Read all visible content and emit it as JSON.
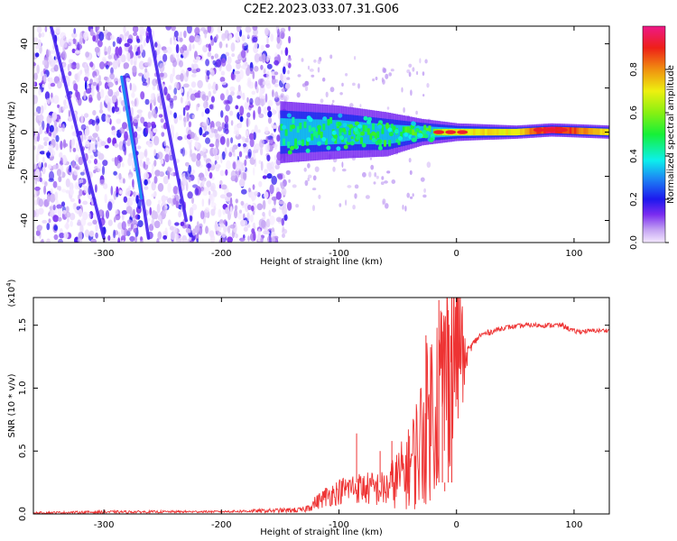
{
  "figure_title": "C2E2.2023.033.07.31.G06",
  "chart_data": [
    {
      "type": "heatmap",
      "title": "C2E2.2023.033.07.31.G06",
      "xlabel": "Height of straight line (km)",
      "ylabel": "Frequency (Hz)",
      "xlim": [
        -360,
        130
      ],
      "ylim": [
        -50,
        48
      ],
      "x_ticks": [
        -300,
        -200,
        -100,
        0,
        100
      ],
      "y_ticks": [
        -40,
        -20,
        0,
        20,
        40
      ],
      "colorbar": {
        "label": "Normalized spectral amplitude",
        "range": [
          0.0,
          1.0
        ],
        "ticks": [
          0.0,
          0.2,
          0.4,
          0.6,
          0.8
        ],
        "tick_labels": [
          "0.0",
          "0.2",
          "0.4",
          "0.6",
          "0.8"
        ]
      },
      "features": {
        "noise_region_x": [
          -360,
          -150
        ],
        "diagonal_streaks": [
          [
            -345,
            48,
            -300,
            -48
          ],
          [
            -262,
            48,
            -230,
            -40
          ],
          [
            -283,
            25,
            -262,
            -48
          ]
        ],
        "bright_diagonal": [
          -285,
          25,
          -268,
          -30
        ],
        "signal_band": [
          [
            -150,
            0,
            14,
            0.45
          ],
          [
            -100,
            0,
            12,
            0.5
          ],
          [
            -60,
            -1,
            10,
            0.5
          ],
          [
            -30,
            0,
            6,
            0.55
          ],
          [
            0,
            0,
            4,
            0.7
          ],
          [
            50,
            0,
            3,
            0.7
          ],
          [
            80,
            1,
            3,
            0.95
          ],
          [
            130,
            0,
            3,
            0.7
          ]
        ]
      },
      "grid": false,
      "legend": "none"
    },
    {
      "type": "line",
      "xlabel": "Height of straight line (km)",
      "ylabel": "SNR (10 * v/v)",
      "scale_label": "(x10",
      "scale_exponent": "4",
      "scale_close": ")",
      "xlim": [
        -360,
        130
      ],
      "ylim": [
        0,
        1.72
      ],
      "x_ticks": [
        -300,
        -200,
        -100,
        0,
        100
      ],
      "y_ticks": [
        0.0,
        0.5,
        1.0,
        1.5
      ],
      "y_tick_labels": [
        "0.0",
        "0.5",
        "1.0",
        "1.5"
      ],
      "series": [
        {
          "color": "#ee3333",
          "envelope": [
            [
              -360,
              0.005,
              0.01
            ],
            [
              -300,
              0.01,
              0.015
            ],
            [
              -200,
              0.015,
              0.01
            ],
            [
              -130,
              0.02,
              0.03
            ],
            [
              -110,
              0.1,
              0.12
            ],
            [
              -90,
              0.15,
              0.16
            ],
            [
              -60,
              0.12,
              0.2
            ],
            [
              -40,
              0.2,
              0.45
            ],
            [
              -30,
              0.3,
              0.75
            ],
            [
              -20,
              0.5,
              1.0
            ],
            [
              -10,
              0.65,
              1.15
            ],
            [
              0,
              0.95,
              1.2
            ],
            [
              10,
              1.3,
              0.08
            ],
            [
              20,
              1.42,
              0.05
            ],
            [
              40,
              1.48,
              0.04
            ],
            [
              60,
              1.5,
              0.04
            ],
            [
              90,
              1.5,
              0.04
            ],
            [
              100,
              1.45,
              0.04
            ],
            [
              130,
              1.46,
              0.03
            ]
          ],
          "spikes": [
            [
              -15,
              1.7
            ],
            [
              -12,
              1.45
            ],
            [
              -7,
              1.62
            ],
            [
              -26,
              1.42
            ],
            [
              -4,
              1.3
            ],
            [
              -85,
              0.64
            ],
            [
              -10,
              0.18
            ],
            [
              -65,
              0.5
            ],
            [
              -40,
              0.62
            ],
            [
              -55,
              0.58
            ]
          ]
        }
      ],
      "grid": false,
      "legend": "none"
    }
  ]
}
